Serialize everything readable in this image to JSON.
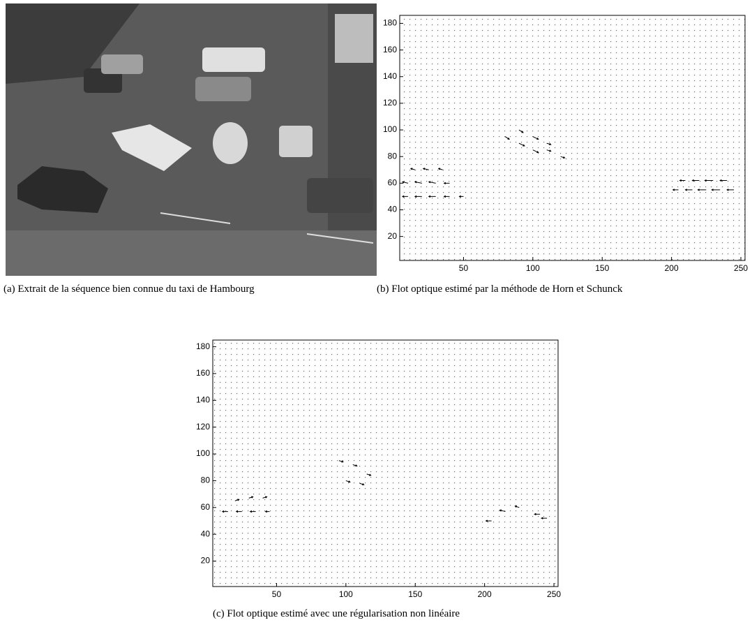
{
  "captions": {
    "a": "(a) Extrait de la séquence bien connue du taxi de Hambourg",
    "b": "(b) Flot optique estimé par la méthode de Horn et Schunck",
    "c": "(c) Flot optique estimé avec une régularisation non linéaire"
  },
  "chart_data": [
    {
      "type": "quiver",
      "xlim": [
        4,
        253
      ],
      "ylim": [
        2,
        186
      ],
      "xticks": [
        50,
        100,
        150,
        200,
        250
      ],
      "yticks": [
        20,
        40,
        60,
        80,
        100,
        120,
        140,
        160,
        180
      ],
      "color": "#000000",
      "x": [
        10,
        20,
        30,
        40,
        50,
        10,
        20,
        30,
        40,
        15,
        25,
        35,
        80,
        90,
        100,
        110,
        120,
        90,
        100,
        110,
        205,
        215,
        225,
        235,
        245,
        210,
        220,
        230,
        240
      ],
      "y": [
        50,
        50,
        50,
        50,
        50,
        60,
        60,
        60,
        60,
        70,
        70,
        70,
        95,
        90,
        85,
        85,
        80,
        100,
        95,
        90,
        55,
        55,
        55,
        55,
        55,
        62,
        62,
        62,
        62
      ],
      "u": [
        -4,
        -5,
        -5,
        -4,
        -3,
        -4,
        -5,
        -5,
        -4,
        -3,
        -4,
        -3,
        3,
        4,
        4,
        3,
        3,
        3,
        4,
        3,
        -4,
        -5,
        -6,
        -6,
        -5,
        -4,
        -5,
        -6,
        -5
      ],
      "v": [
        0,
        0,
        0,
        0,
        0,
        1,
        1,
        1,
        0,
        1,
        1,
        1,
        -2,
        -2,
        -2,
        -1,
        -1,
        -2,
        -2,
        -1,
        0,
        0,
        0,
        0,
        0,
        0,
        0,
        0,
        0
      ]
    },
    {
      "type": "quiver",
      "xlim": [
        4,
        253
      ],
      "ylim": [
        1,
        185
      ],
      "xticks": [
        50,
        100,
        150,
        200,
        250
      ],
      "yticks": [
        20,
        40,
        60,
        80,
        100,
        120,
        140,
        160,
        180
      ],
      "color": "#000000",
      "x": [
        15,
        25,
        35,
        45,
        20,
        30,
        40,
        95,
        105,
        115,
        100,
        110,
        205,
        215,
        225,
        240,
        245
      ],
      "y": [
        57,
        57,
        57,
        57,
        65,
        67,
        67,
        95,
        92,
        85,
        80,
        78,
        50,
        57,
        60,
        55,
        52
      ],
      "u": [
        -4,
        -4,
        -4,
        -3,
        3,
        3,
        3,
        3,
        3,
        3,
        3,
        3,
        -4,
        -4,
        -3,
        -4,
        -4
      ],
      "v": [
        0,
        0,
        0,
        0,
        1,
        1,
        1,
        -1,
        -1,
        -1,
        -1,
        -1,
        0,
        1,
        1,
        0,
        0
      ]
    }
  ]
}
